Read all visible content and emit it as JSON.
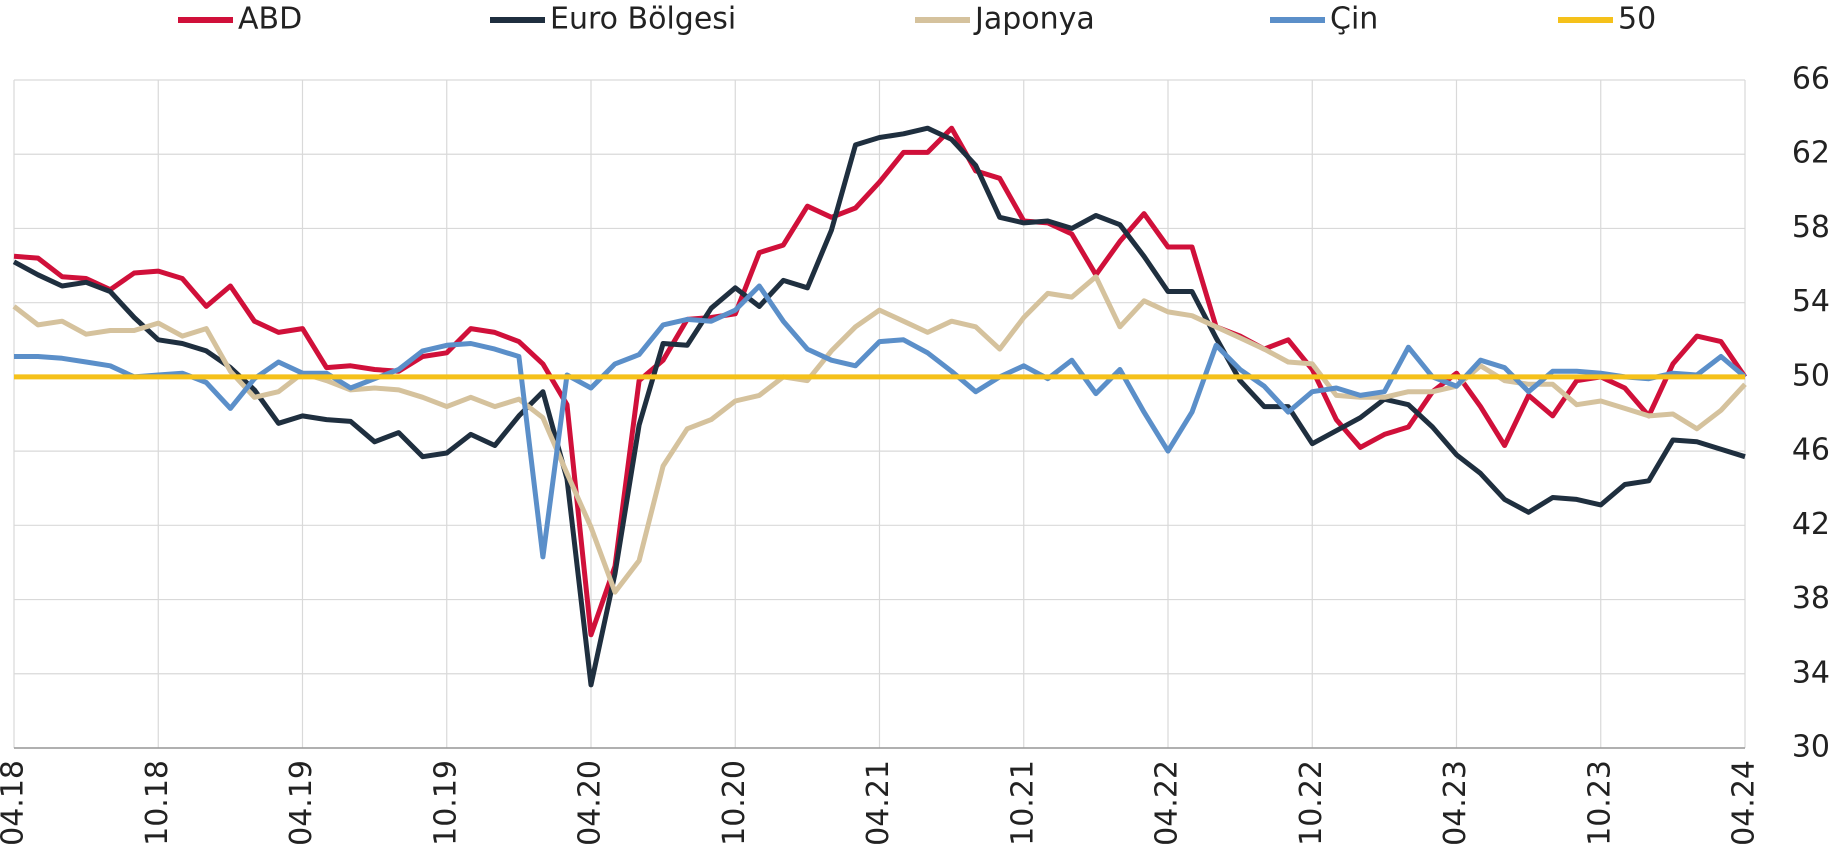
{
  "chart_data": {
    "type": "line",
    "categories": [
      "04.18",
      null,
      null,
      null,
      null,
      null,
      "10.18",
      null,
      null,
      null,
      null,
      null,
      "04.19",
      null,
      null,
      null,
      null,
      null,
      "10.19",
      null,
      null,
      null,
      null,
      null,
      "04.20",
      null,
      null,
      null,
      null,
      null,
      "10.20",
      null,
      null,
      null,
      null,
      null,
      "04.21",
      null,
      null,
      null,
      null,
      null,
      "10.21",
      null,
      null,
      null,
      null,
      null,
      "04.22",
      null,
      null,
      null,
      null,
      null,
      "10.22",
      null,
      null,
      null,
      null,
      null,
      "04.23",
      null,
      null,
      null,
      null,
      null,
      "10.23",
      null,
      null,
      null,
      null,
      null,
      "04.24"
    ],
    "series": [
      {
        "name": "ABD",
        "color": "#d0103a",
        "values": [
          56.5,
          56.4,
          55.4,
          55.3,
          54.7,
          55.6,
          55.7,
          55.3,
          53.8,
          54.9,
          53.0,
          52.4,
          52.6,
          50.5,
          50.6,
          50.4,
          50.3,
          51.1,
          51.3,
          52.6,
          52.4,
          51.9,
          50.7,
          48.5,
          36.1,
          39.8,
          49.8,
          50.9,
          53.1,
          53.2,
          53.4,
          56.7,
          57.1,
          59.2,
          58.6,
          59.1,
          60.5,
          62.1,
          62.1,
          63.4,
          61.1,
          60.7,
          58.4,
          58.3,
          57.7,
          55.5,
          57.3,
          58.8,
          57.0,
          57.0,
          52.7,
          52.2,
          51.5,
          52.0,
          50.4,
          47.7,
          46.2,
          46.9,
          47.3,
          49.2,
          50.2,
          48.4,
          46.3,
          49.0,
          47.9,
          49.8,
          50.0,
          49.4,
          47.9,
          50.7,
          52.2,
          51.9,
          50.0
        ]
      },
      {
        "name": "Euro Bölgesi",
        "color": "#1f2f3f",
        "values": [
          56.2,
          55.5,
          54.9,
          55.1,
          54.6,
          53.2,
          52.0,
          51.8,
          51.4,
          50.5,
          49.3,
          47.5,
          47.9,
          47.7,
          47.6,
          46.5,
          47.0,
          45.7,
          45.9,
          46.9,
          46.3,
          47.9,
          49.2,
          44.5,
          33.4,
          39.4,
          47.4,
          51.8,
          51.7,
          53.7,
          54.8,
          53.8,
          55.2,
          54.8,
          57.9,
          62.5,
          62.9,
          63.1,
          63.4,
          62.8,
          61.4,
          58.6,
          58.3,
          58.4,
          58.0,
          58.7,
          58.2,
          56.5,
          54.6,
          54.6,
          52.1,
          49.8,
          48.4,
          48.4,
          46.4,
          47.1,
          47.8,
          48.8,
          48.5,
          47.3,
          45.8,
          44.8,
          43.4,
          42.7,
          43.5,
          43.4,
          43.1,
          44.2,
          44.4,
          46.6,
          46.5,
          46.1,
          45.7
        ]
      },
      {
        "name": "Japonya",
        "color": "#d5c29d",
        "values": [
          53.8,
          52.8,
          53.0,
          52.3,
          52.5,
          52.5,
          52.9,
          52.2,
          52.6,
          50.3,
          48.9,
          49.2,
          50.2,
          49.8,
          49.3,
          49.4,
          49.3,
          48.9,
          48.4,
          48.9,
          48.4,
          48.8,
          47.8,
          44.8,
          41.9,
          38.4,
          40.1,
          45.2,
          47.2,
          47.7,
          48.7,
          49.0,
          50.0,
          49.8,
          51.4,
          52.7,
          53.6,
          53.0,
          52.4,
          53.0,
          52.7,
          51.5,
          53.2,
          54.5,
          54.3,
          55.4,
          52.7,
          54.1,
          53.5,
          53.3,
          52.7,
          52.1,
          51.5,
          50.8,
          50.7,
          49.0,
          48.9,
          48.9,
          49.2,
          49.2,
          49.5,
          50.6,
          49.8,
          49.6,
          49.6,
          48.5,
          48.7,
          48.3,
          47.9,
          48.0,
          47.2,
          48.2,
          49.6
        ]
      },
      {
        "name": "Çin",
        "color": "#5b8fc9",
        "values": [
          51.1,
          51.1,
          51.0,
          50.8,
          50.6,
          50.0,
          50.1,
          50.2,
          49.7,
          48.3,
          49.9,
          50.8,
          50.2,
          50.2,
          49.4,
          49.9,
          50.4,
          51.4,
          51.7,
          51.8,
          51.5,
          51.1,
          40.3,
          50.1,
          49.4,
          50.7,
          51.2,
          52.8,
          53.1,
          53.0,
          53.6,
          54.9,
          53.0,
          51.5,
          50.9,
          50.6,
          51.9,
          52.0,
          51.3,
          50.3,
          49.2,
          50.0,
          50.6,
          49.9,
          50.9,
          49.1,
          50.4,
          48.1,
          46.0,
          48.1,
          51.7,
          50.4,
          49.5,
          48.1,
          49.2,
          49.4,
          49.0,
          49.2,
          51.6,
          50.0,
          49.5,
          50.9,
          50.5,
          49.2,
          50.3,
          50.3,
          50.2,
          50.0,
          49.9,
          50.2,
          50.1,
          51.1,
          50.0
        ]
      },
      {
        "name": "50",
        "color": "#f5c11a",
        "values": [
          50,
          50,
          50,
          50,
          50,
          50,
          50,
          50,
          50,
          50,
          50,
          50,
          50,
          50,
          50,
          50,
          50,
          50,
          50,
          50,
          50,
          50,
          50,
          50,
          50,
          50,
          50,
          50,
          50,
          50,
          50,
          50,
          50,
          50,
          50,
          50,
          50,
          50,
          50,
          50,
          50,
          50,
          50,
          50,
          50,
          50,
          50,
          50,
          50,
          50,
          50,
          50,
          50,
          50,
          50,
          50,
          50,
          50,
          50,
          50,
          50,
          50,
          50,
          50,
          50,
          50,
          50,
          50,
          50,
          50,
          50,
          50,
          50
        ]
      }
    ],
    "ylim": [
      30,
      66
    ],
    "yticks": [
      30,
      34,
      38,
      42,
      46,
      50,
      54,
      58,
      62,
      66
    ],
    "grid": true,
    "legend": "top"
  }
}
